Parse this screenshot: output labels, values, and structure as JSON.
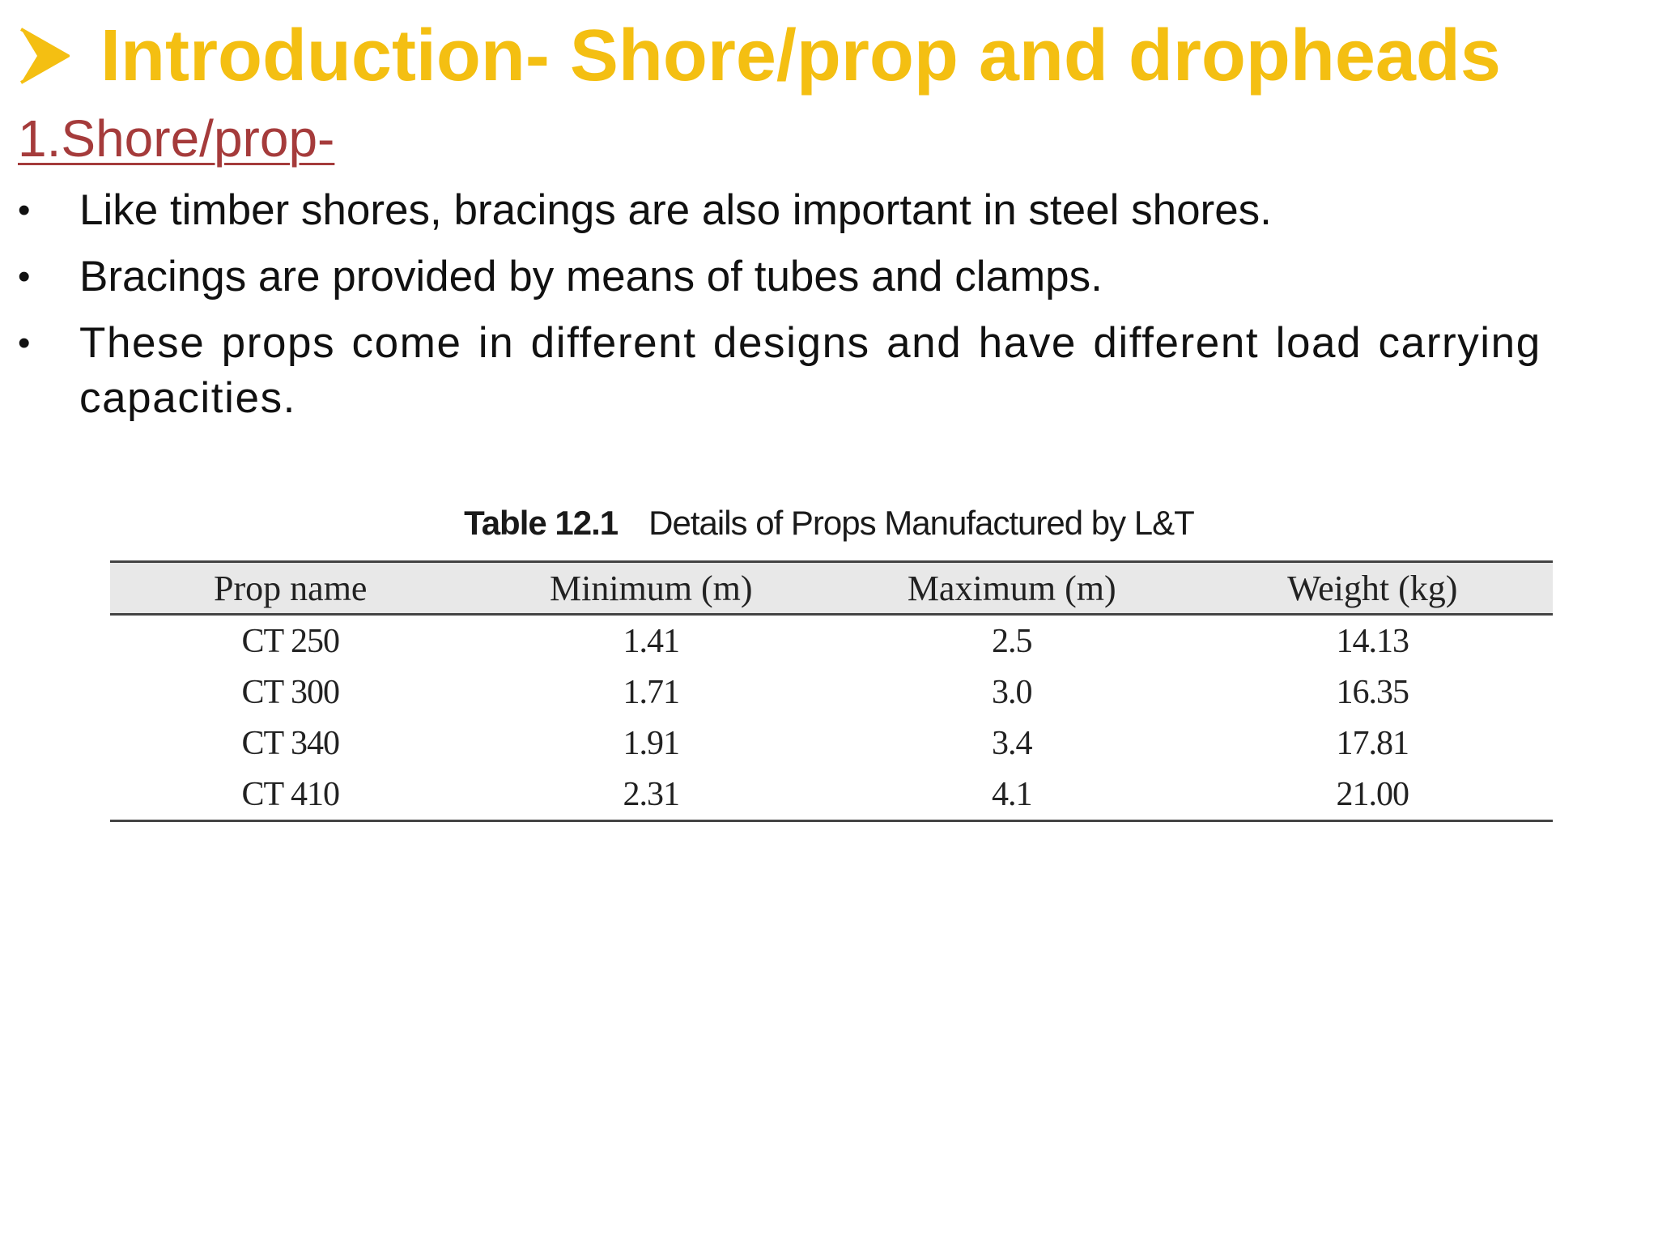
{
  "slide": {
    "title": "Introduction- Shore/prop and dropheads",
    "title_icon": "arrowhead-bullet-icon",
    "title_color": "#f4bf12",
    "subheading": "1.Shore/prop-",
    "subheading_color": "#a53b3b",
    "bullets": [
      {
        "marker": "•",
        "text": "Like timber shores, bracings are also important in steel shores."
      },
      {
        "marker": "•",
        "text": "Bracings are provided by means of tubes and clamps."
      },
      {
        "marker": "•",
        "text": "These props come in different designs and have different load carrying capacities."
      }
    ]
  },
  "table": {
    "caption_label": "Table 12.1",
    "caption_text": "Details of Props Manufactured by L&T",
    "headers": [
      "Prop name",
      "Minimum (m)",
      "Maximum (m)",
      "Weight (kg)"
    ],
    "rows": [
      [
        "CT 250",
        "1.41",
        "2.5",
        "14.13"
      ],
      [
        "CT 300",
        "1.71",
        "3.0",
        "16.35"
      ],
      [
        "CT 340",
        "1.91",
        "3.4",
        "17.81"
      ],
      [
        "CT 410",
        "2.31",
        "4.1",
        "21.00"
      ]
    ]
  }
}
